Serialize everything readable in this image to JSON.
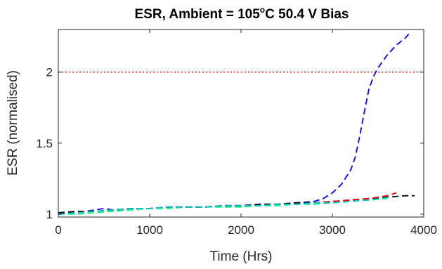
{
  "chart_data": {
    "type": "line",
    "title": {
      "prefix": "ESR, Ambient = 105",
      "superscript": "o",
      "suffix": "C 50.4 V Bias"
    },
    "xlabel": "Time (Hrs)",
    "ylabel": "ESR (normalised)",
    "xlim": [
      0,
      4000
    ],
    "ylim": [
      0.98,
      2.3
    ],
    "xticks": [
      0,
      1000,
      2000,
      3000,
      4000
    ],
    "xtick_labels": [
      "0",
      "1000",
      "2000",
      "3000",
      "4000"
    ],
    "yticks": [
      1,
      1.5,
      2
    ],
    "ytick_labels": [
      "1",
      "1.5",
      "2"
    ],
    "grid": false,
    "legend": "none",
    "reference_line": {
      "y": 2,
      "color": "#ff0000",
      "style": "dotted"
    },
    "series": [
      {
        "color": "#0000ff",
        "style": "dashed",
        "x": [
          0,
          100,
          200,
          300,
          400,
          500,
          600,
          800,
          1000,
          1200,
          1400,
          1600,
          1800,
          2000,
          2200,
          2400,
          2600,
          2800,
          2900,
          3000,
          3100,
          3200,
          3250,
          3300,
          3350,
          3400,
          3450,
          3500,
          3600,
          3700,
          3800,
          3850
        ],
        "y": [
          1.0,
          1.01,
          1.01,
          1.02,
          1.03,
          1.04,
          1.03,
          1.04,
          1.04,
          1.05,
          1.05,
          1.05,
          1.06,
          1.06,
          1.07,
          1.07,
          1.08,
          1.09,
          1.11,
          1.15,
          1.21,
          1.31,
          1.4,
          1.55,
          1.72,
          1.88,
          1.97,
          2.03,
          2.12,
          2.19,
          2.24,
          2.28
        ]
      },
      {
        "color": "#000000",
        "style": "dashed",
        "x": [
          0,
          200,
          400,
          600,
          800,
          1000,
          1200,
          1400,
          1600,
          1800,
          2000,
          2200,
          2400,
          2600,
          2800,
          3000,
          3200,
          3400,
          3600,
          3800,
          3900
        ],
        "y": [
          1.01,
          1.02,
          1.02,
          1.03,
          1.04,
          1.04,
          1.05,
          1.05,
          1.05,
          1.06,
          1.06,
          1.07,
          1.07,
          1.08,
          1.08,
          1.09,
          1.1,
          1.11,
          1.12,
          1.13,
          1.13
        ]
      },
      {
        "color": "#ff0000",
        "style": "dashed",
        "x": [
          0,
          200,
          400,
          600,
          800,
          1000,
          1200,
          1400,
          1600,
          1800,
          2000,
          2200,
          2400,
          2600,
          2800,
          3000,
          3200,
          3400,
          3600,
          3700
        ],
        "y": [
          1.0,
          1.01,
          1.02,
          1.03,
          1.04,
          1.04,
          1.05,
          1.05,
          1.05,
          1.06,
          1.06,
          1.06,
          1.07,
          1.07,
          1.08,
          1.09,
          1.1,
          1.11,
          1.13,
          1.15
        ]
      },
      {
        "color": "#00ff80",
        "style": "dashed",
        "x": [
          0,
          200,
          400,
          600,
          800,
          1000,
          1200,
          1400,
          1600,
          1800,
          2000,
          2200,
          2400,
          2600,
          2800,
          3000,
          3200,
          3400,
          3600
        ],
        "y": [
          1.0,
          1.0,
          1.01,
          1.02,
          1.03,
          1.04,
          1.04,
          1.05,
          1.05,
          1.05,
          1.05,
          1.06,
          1.06,
          1.07,
          1.07,
          1.08,
          1.09,
          1.1,
          1.11
        ]
      },
      {
        "color": "#00c8c8",
        "style": "dashed",
        "x": [
          0,
          200,
          400,
          600,
          800,
          1000,
          1200,
          1400,
          1600,
          1800,
          2000,
          2200,
          2400,
          2600,
          2800,
          3000,
          3200,
          3400,
          3650
        ],
        "y": [
          1.0,
          1.01,
          1.02,
          1.03,
          1.04,
          1.04,
          1.05,
          1.05,
          1.05,
          1.06,
          1.06,
          1.06,
          1.07,
          1.07,
          1.08,
          1.08,
          1.09,
          1.1,
          1.12
        ]
      }
    ]
  }
}
